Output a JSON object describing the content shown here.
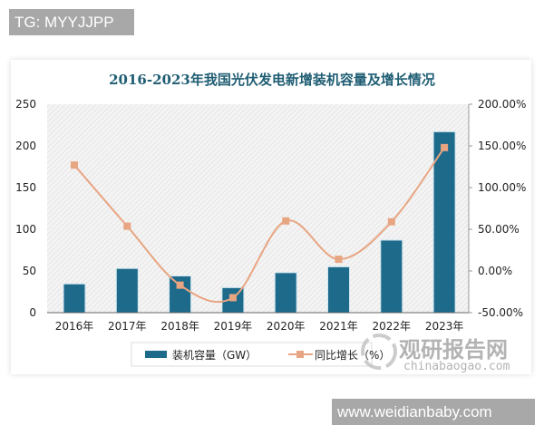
{
  "tag_label": "TG: MYYJJPP",
  "site_label": "www.weidianbaby.com",
  "watermark": {
    "cn": "观研报告网",
    "en": "chinabaogao.com"
  },
  "colors": {
    "bar": "#1d6a8a",
    "line": "#e8a582",
    "title": "#1f5d73"
  },
  "chart_data": {
    "type": "bar",
    "title": "2016-2023年我国光伏发电新增装机容量及增长情况",
    "categories": [
      "2016年",
      "2017年",
      "2018年",
      "2019年",
      "2020年",
      "2021年",
      "2022年",
      "2023年"
    ],
    "series": [
      {
        "name": "装机容量（GW）",
        "type": "bar",
        "axis": "left",
        "values": [
          34.5,
          53,
          44,
          30,
          48,
          55,
          87,
          217
        ]
      },
      {
        "name": "同比增长（%）",
        "type": "line",
        "axis": "right",
        "values": [
          127,
          53.7,
          -17,
          -32,
          60,
          14,
          59,
          148
        ]
      }
    ],
    "left_axis": {
      "ylim": [
        0,
        250
      ],
      "ticks": [
        "0",
        "50",
        "100",
        "150",
        "200",
        "250"
      ]
    },
    "right_axis": {
      "ylim": [
        -50,
        200
      ],
      "ticks": [
        "-50.00%",
        "0.00%",
        "50.00%",
        "100.00%",
        "150.00%",
        "200.00%"
      ]
    },
    "legend": "bottom",
    "grid": false
  }
}
